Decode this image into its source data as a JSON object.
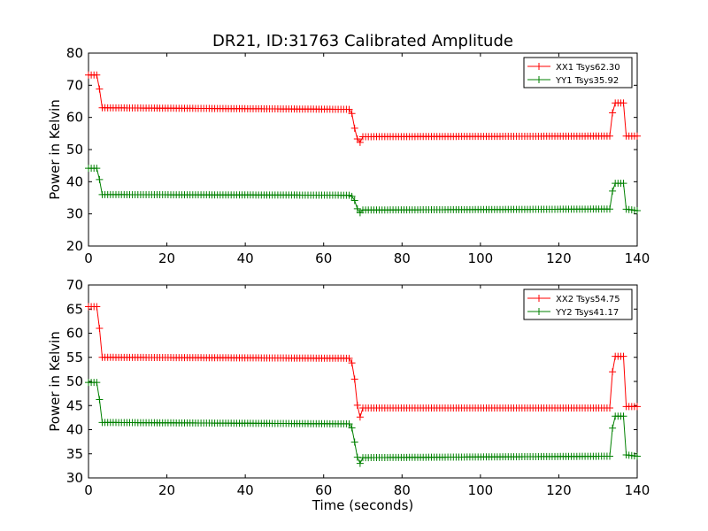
{
  "chart_data": [
    {
      "type": "line",
      "title": "DR21, ID:31763 Calibrated Amplitude",
      "xlabel": "",
      "ylabel": "Power in Kelvin",
      "xlim": [
        0,
        140
      ],
      "ylim": [
        20,
        80
      ],
      "x_ticks": [
        "0",
        "20",
        "40",
        "60",
        "80",
        "100",
        "120",
        "140"
      ],
      "y_ticks": [
        "20",
        "30",
        "40",
        "50",
        "60",
        "70",
        "80"
      ],
      "legend_position": "top-right",
      "series": [
        {
          "name": "XX1 Tsys62.30",
          "color": "#ff0000",
          "marker": "+",
          "segments": [
            [
              0,
              73.2
            ],
            [
              2.5,
              73.2
            ],
            [
              3.2,
              63.0
            ],
            [
              67,
              62.5
            ],
            [
              68,
              56.0
            ],
            [
              69,
              51.5
            ],
            [
              70,
              54.0
            ],
            [
              133,
              54.2
            ],
            [
              134,
              64.5
            ],
            [
              136.5,
              64.5
            ],
            [
              137,
              54.2
            ],
            [
              140,
              54.2
            ]
          ]
        },
        {
          "name": "YY1 Tsys35.92",
          "color": "#008000",
          "marker": "+",
          "segments": [
            [
              0,
              44.2
            ],
            [
              2.5,
              44.2
            ],
            [
              3.2,
              36.0
            ],
            [
              67,
              35.8
            ],
            [
              68,
              34.0
            ],
            [
              69,
              30.0
            ],
            [
              70,
              31.2
            ],
            [
              133,
              31.5
            ],
            [
              134,
              39.5
            ],
            [
              136.5,
              39.5
            ],
            [
              137,
              31.5
            ],
            [
              140,
              31.0
            ]
          ]
        }
      ]
    },
    {
      "type": "line",
      "title": "",
      "xlabel": "Time (seconds)",
      "ylabel": "Power in Kelvin",
      "xlim": [
        0,
        140
      ],
      "ylim": [
        30,
        70
      ],
      "x_ticks": [
        "0",
        "20",
        "40",
        "60",
        "80",
        "100",
        "120",
        "140"
      ],
      "y_ticks": [
        "30",
        "35",
        "40",
        "45",
        "50",
        "55",
        "60",
        "65",
        "70"
      ],
      "legend_position": "top-right",
      "series": [
        {
          "name": "XX2 Tsys54.75",
          "color": "#ff0000",
          "marker": "+",
          "segments": [
            [
              0,
              65.5
            ],
            [
              2.5,
              65.5
            ],
            [
              3.2,
              55.0
            ],
            [
              67,
              54.8
            ],
            [
              68,
              50.0
            ],
            [
              69,
              41.8
            ],
            [
              70,
              44.5
            ],
            [
              133,
              44.5
            ],
            [
              134,
              55.2
            ],
            [
              136.5,
              55.2
            ],
            [
              137,
              44.8
            ],
            [
              140,
              44.8
            ]
          ]
        },
        {
          "name": "YY2 Tsys41.17",
          "color": "#008000",
          "marker": "+",
          "segments": [
            [
              0,
              49.8
            ],
            [
              2.5,
              49.8
            ],
            [
              3.2,
              41.5
            ],
            [
              67,
              41.2
            ],
            [
              68,
              37.0
            ],
            [
              69,
              32.5
            ],
            [
              70,
              34.2
            ],
            [
              133,
              34.5
            ],
            [
              134,
              42.8
            ],
            [
              136.5,
              42.8
            ],
            [
              137,
              34.8
            ],
            [
              140,
              34.5
            ]
          ]
        }
      ]
    }
  ]
}
